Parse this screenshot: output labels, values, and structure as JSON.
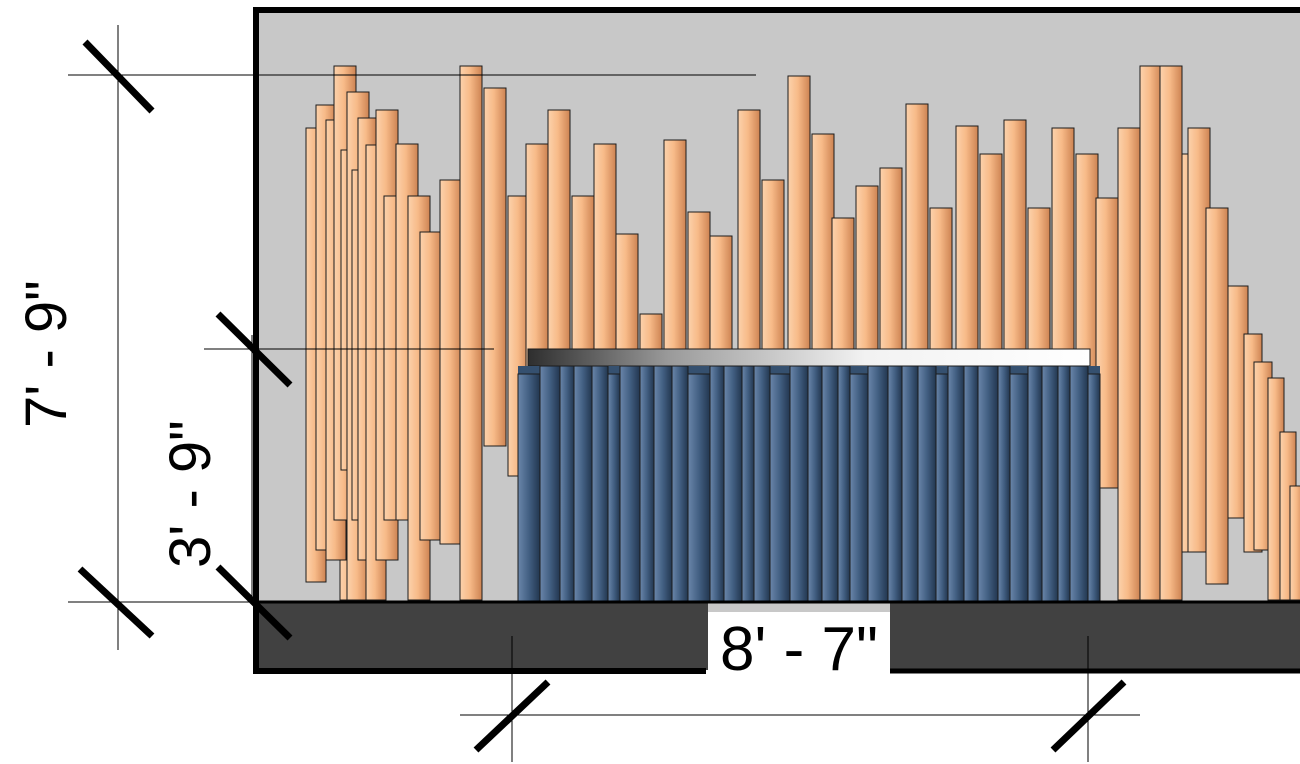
{
  "dimensions": {
    "overall_height": "7' - 9\"",
    "counter_height": "3' - 9\"",
    "counter_width": "8' - 7\""
  },
  "colors": {
    "background": "#c8c8c8",
    "frame": "#000000",
    "floor": "#414141",
    "tall_element_fill": "#f6b583",
    "short_element_fill": "#3c5573",
    "counter_top": "#d8d8d8",
    "dimension_line": "#000000"
  }
}
